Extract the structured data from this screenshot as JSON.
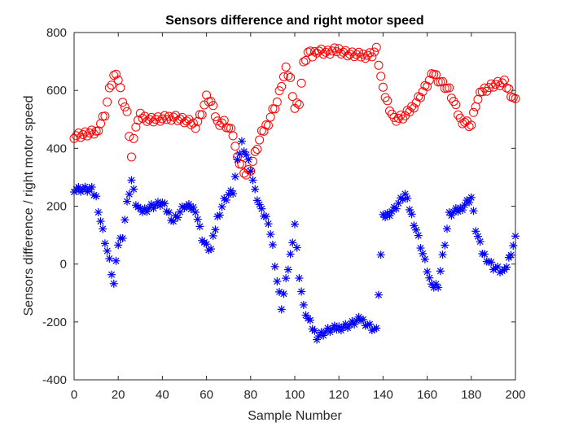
{
  "chart_data": {
    "type": "scatter",
    "title": "Sensors difference and right motor speed",
    "xlabel": "Sample Number",
    "ylabel": "Sensors difference / right motor speed",
    "xlim": [
      0,
      200
    ],
    "ylim": [
      -400,
      800
    ],
    "xticks": [
      "0",
      "20",
      "40",
      "60",
      "80",
      "100",
      "120",
      "140",
      "160",
      "180",
      "200"
    ],
    "yticks": [
      "-400",
      "-200",
      "0",
      "200",
      "400",
      "600",
      "800"
    ],
    "grid": false,
    "legend": "none",
    "series": [
      {
        "marker": "circle",
        "color": "#ff0000",
        "x": [
          0,
          5,
          10,
          14,
          16,
          18,
          20,
          22,
          24,
          25,
          26,
          28,
          30,
          35,
          40,
          45,
          50,
          55,
          58,
          60,
          62,
          65,
          68,
          70,
          72,
          74,
          76,
          78,
          80,
          82,
          85,
          88,
          90,
          92,
          94,
          96,
          98,
          100,
          102,
          104,
          106,
          108,
          110,
          115,
          120,
          125,
          130,
          135,
          137,
          140,
          145,
          150,
          155,
          160,
          163,
          165,
          170,
          175,
          180,
          182,
          185,
          190,
          195,
          200
        ],
        "y": [
          445,
          448,
          455,
          520,
          600,
          650,
          640,
          570,
          520,
          450,
          370,
          480,
          510,
          500,
          500,
          510,
          495,
          480,
          525,
          575,
          560,
          490,
          490,
          470,
          450,
          360,
          340,
          310,
          330,
          380,
          450,
          490,
          530,
          560,
          620,
          670,
          640,
          540,
          560,
          690,
          730,
          720,
          740,
          730,
          740,
          725,
          720,
          725,
          740,
          600,
          500,
          510,
          560,
          620,
          660,
          640,
          600,
          500,
          480,
          550,
          600,
          620,
          625,
          565
        ]
      },
      {
        "marker": "asterisk",
        "color": "#0000ff",
        "x": [
          0,
          5,
          8,
          10,
          12,
          14,
          16,
          18,
          20,
          22,
          24,
          26,
          28,
          30,
          35,
          40,
          45,
          50,
          55,
          58,
          60,
          62,
          65,
          68,
          70,
          72,
          74,
          76,
          78,
          80,
          82,
          85,
          88,
          90,
          92,
          94,
          96,
          98,
          100,
          102,
          104,
          106,
          108,
          110,
          115,
          120,
          125,
          130,
          135,
          137,
          140,
          145,
          150,
          155,
          160,
          162,
          165,
          170,
          175,
          180,
          182,
          185,
          190,
          195,
          200
        ],
        "y": [
          260,
          258,
          255,
          230,
          150,
          80,
          10,
          -70,
          70,
          100,
          210,
          290,
          210,
          180,
          200,
          210,
          150,
          200,
          190,
          90,
          60,
          50,
          160,
          220,
          240,
          250,
          350,
          420,
          380,
          330,
          250,
          180,
          150,
          60,
          -60,
          -150,
          -60,
          30,
          140,
          -40,
          -150,
          -190,
          -220,
          -250,
          -230,
          -220,
          -210,
          -190,
          -220,
          -230,
          160,
          190,
          240,
          120,
          -20,
          -80,
          -70,
          170,
          190,
          230,
          120,
          40,
          -10,
          -30,
          90
        ]
      }
    ]
  }
}
